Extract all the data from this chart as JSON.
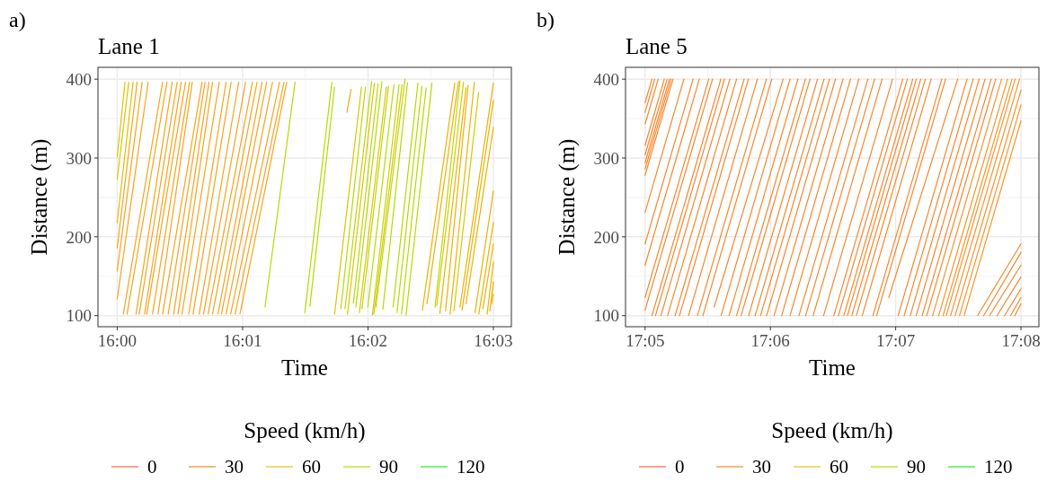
{
  "chart_data": [
    {
      "type": "line",
      "title": "Lane 1",
      "annotations": [
        "a)"
      ],
      "xlabel": "Time",
      "ylabel": "Distance (m)",
      "xlim": [
        15.99744,
        16.05239
      ],
      "ylim": [
        86,
        415
      ],
      "xticks": [
        {
          "value": 16,
          "label": "16:00"
        },
        {
          "value": 16.016667,
          "label": "16:01"
        },
        {
          "value": 16.033333,
          "label": "16:02"
        },
        {
          "value": 16.05,
          "label": "16:03"
        }
      ],
      "yticks": [
        100,
        200,
        300,
        400
      ],
      "grid": true,
      "legend": "bottom",
      "legend_title": "Speed (km/h)",
      "series": [
        {
          "name": "0",
          "color": "#f4845f"
        },
        {
          "name": "30",
          "color": "#f6a24a"
        },
        {
          "name": "60",
          "color": "#f5c842"
        },
        {
          "name": "90",
          "color": "#c5e23a"
        },
        {
          "name": "120",
          "color": "#4cf04c"
        },
        {
          "color": "#dcc400",
          "x": [
            16,
            16.00103
          ],
          "values": [
            301,
            396
          ]
        },
        {
          "color": "#dcc400",
          "x": [
            16,
            16.00153
          ],
          "values": [
            273,
            396
          ]
        },
        {
          "color": "#e2bc00",
          "x": [
            16,
            16.00211
          ],
          "values": [
            218,
            396
          ]
        },
        {
          "color": "#f9a31b",
          "x": [
            16,
            16.00264
          ],
          "values": [
            186,
            396
          ]
        },
        {
          "color": "#f9a31b",
          "x": [
            16,
            16.00331
          ],
          "values": [
            157,
            396
          ]
        },
        {
          "color": "#f9a31b",
          "x": [
            16,
            16.00411
          ],
          "values": [
            121,
            396
          ]
        },
        {
          "color": "#f9a31b",
          "x": [
            16.00081,
            16.00603
          ],
          "values": [
            102,
            396
          ]
        },
        {
          "color": "#f9a31b",
          "x": [
            16.00131,
            16.00661
          ],
          "values": [
            102,
            396
          ]
        },
        {
          "color": "#f9a31b",
          "x": [
            16.0025,
            16.00731
          ],
          "values": [
            102,
            396
          ]
        },
        {
          "color": "#f9a31b",
          "x": [
            16.00292,
            16.00797
          ],
          "values": [
            102,
            396
          ]
        },
        {
          "color": "#f9a31b",
          "x": [
            16.00364,
            16.0085
          ],
          "values": [
            102,
            396
          ]
        },
        {
          "color": "#f9a31b",
          "x": [
            16.00392,
            16.00908
          ],
          "values": [
            102,
            396
          ]
        },
        {
          "color": "#f9a31b",
          "x": [
            16.00469,
            16.00961
          ],
          "values": [
            102,
            396
          ]
        },
        {
          "color": "#f9a31b",
          "x": [
            16.00542,
            16.00997
          ],
          "values": [
            102,
            396
          ]
        },
        {
          "color": "#f9a31b",
          "x": [
            16.00603,
            16.01128
          ],
          "values": [
            102,
            396
          ]
        },
        {
          "color": "#f9a31b",
          "x": [
            16.00678,
            16.01167
          ],
          "values": [
            102,
            396
          ]
        },
        {
          "color": "#f9a31b",
          "x": [
            16.0075,
            16.01219
          ],
          "values": [
            102,
            396
          ]
        },
        {
          "color": "#f9a31b",
          "x": [
            16.00808,
            16.01267
          ],
          "values": [
            102,
            396
          ]
        },
        {
          "color": "#f9a31b",
          "x": [
            16.00861,
            16.01356
          ],
          "values": [
            102,
            396
          ]
        },
        {
          "color": "#f9a31b",
          "x": [
            16.0095,
            16.01447
          ],
          "values": [
            102,
            396
          ]
        },
        {
          "color": "#f9a31b",
          "x": [
            16.01008,
            16.01514
          ],
          "values": [
            102,
            396
          ]
        },
        {
          "color": "#f9a31b",
          "x": [
            16.01089,
            16.01614
          ],
          "values": [
            102,
            396
          ]
        },
        {
          "color": "#f9a31b",
          "x": [
            16.01147,
            16.01706
          ],
          "values": [
            102,
            396
          ]
        },
        {
          "color": "#f9a31b",
          "x": [
            16.01208,
            16.01797
          ],
          "values": [
            102,
            396
          ]
        },
        {
          "color": "#f9a31b",
          "x": [
            16.01267,
            16.01858
          ],
          "values": [
            102,
            396
          ]
        },
        {
          "color": "#f9a31b",
          "x": [
            16.01339,
            16.01925
          ],
          "values": [
            102,
            396
          ]
        },
        {
          "color": "#f9a31b",
          "x": [
            16.01386,
            16.01986
          ],
          "values": [
            102,
            396
          ]
        },
        {
          "color": "#f9a31b",
          "x": [
            16.01447,
            16.02064
          ],
          "values": [
            102,
            396
          ]
        },
        {
          "color": "#f9a31b",
          "x": [
            16.01508,
            16.02156
          ],
          "values": [
            102,
            396
          ]
        },
        {
          "color": "#f9a31b",
          "x": [
            16.01567,
            16.02217
          ],
          "values": [
            102,
            396
          ]
        },
        {
          "color": "#f9a31b",
          "x": [
            16.01631,
            16.02253
          ],
          "values": [
            102,
            396
          ]
        },
        {
          "color": "#b9d800",
          "x": [
            16.01964,
            16.02364
          ],
          "values": [
            111,
            396
          ]
        },
        {
          "color": "#b9d800",
          "x": [
            16.02494,
            16.02853
          ],
          "values": [
            104,
            396
          ]
        },
        {
          "color": "#b9d800",
          "x": [
            16.02561,
            16.02889
          ],
          "values": [
            112,
            390
          ]
        },
        {
          "color": "#f9a31b",
          "x": [
            16.03053,
            16.03108
          ],
          "values": [
            358,
            387
          ]
        },
        {
          "color": "#dcc400",
          "x": [
            16.02889,
            16.03247
          ],
          "values": [
            102,
            390
          ]
        },
        {
          "color": "#b9d800",
          "x": [
            16.02972,
            16.033
          ],
          "values": [
            109,
            390
          ]
        },
        {
          "color": "#b9d800",
          "x": [
            16.03028,
            16.03381
          ],
          "values": [
            109,
            397
          ]
        },
        {
          "color": "#dcc400",
          "x": [
            16.03061,
            16.03419
          ],
          "values": [
            102,
            395
          ]
        },
        {
          "color": "#b9d800",
          "x": [
            16.03139,
            16.03467
          ],
          "values": [
            116,
            394
          ]
        },
        {
          "color": "#b9d800",
          "x": [
            16.03172,
            16.03519
          ],
          "values": [
            111,
            397
          ]
        },
        {
          "color": "#dcc400",
          "x": [
            16.03219,
            16.03578
          ],
          "values": [
            104,
            390
          ]
        },
        {
          "color": "#b9d800",
          "x": [
            16.03253,
            16.03606
          ],
          "values": [
            109,
            391
          ]
        },
        {
          "color": "#b9d800",
          "x": [
            16.03331,
            16.03678
          ],
          "values": [
            111,
            393
          ]
        },
        {
          "color": "#b9d800",
          "x": [
            16.03392,
            16.03747
          ],
          "values": [
            101,
            393
          ]
        },
        {
          "color": "#dcc400",
          "x": [
            16.03411,
            16.03786
          ],
          "values": [
            102,
            393
          ]
        },
        {
          "color": "#b9d800",
          "x": [
            16.03439,
            16.03825
          ],
          "values": [
            111,
            400
          ]
        },
        {
          "color": "#b9d800",
          "x": [
            16.03531,
            16.03858
          ],
          "values": [
            108,
            395
          ]
        },
        {
          "color": "#b9d800",
          "x": [
            16.03667,
            16.03997
          ],
          "values": [
            111,
            395
          ]
        },
        {
          "color": "#b9d800",
          "x": [
            16.03719,
            16.0405
          ],
          "values": [
            104,
            391
          ]
        },
        {
          "color": "#b9d800",
          "x": [
            16.03778,
            16.04106
          ],
          "values": [
            102,
            389
          ]
        },
        {
          "color": "#b9d800",
          "x": [
            16.03839,
            16.04183
          ],
          "values": [
            101,
            395
          ]
        },
        {
          "color": "#f0b000",
          "x": [
            16.04056,
            16.04486
          ],
          "values": [
            107,
            395
          ]
        },
        {
          "color": "#f0b000",
          "x": [
            16.04117,
            16.04536
          ],
          "values": [
            115,
            397
          ]
        },
        {
          "color": "#c8d000",
          "x": [
            16.04225,
            16.04556
          ],
          "values": [
            111,
            398
          ]
        },
        {
          "color": "#c8d000",
          "x": [
            16.04247,
            16.04603
          ],
          "values": [
            113,
            396
          ]
        },
        {
          "color": "#f0b000",
          "x": [
            16.04289,
            16.04636
          ],
          "values": [
            103,
            389
          ]
        },
        {
          "color": "#f0b000",
          "x": [
            16.04364,
            16.04664
          ],
          "values": [
            106,
            392
          ]
        },
        {
          "color": "#f0b000",
          "x": [
            16.04425,
            16.04747
          ],
          "values": [
            102,
            396
          ]
        },
        {
          "color": "#c8d000",
          "x": [
            16.04475,
            16.04803
          ],
          "values": [
            106,
            383
          ]
        },
        {
          "color": "#f0b000",
          "x": [
            16.04556,
            16.05
          ],
          "values": [
            111,
            395
          ]
        },
        {
          "color": "#f0b000",
          "x": [
            16.04583,
            16.05
          ],
          "values": [
            107,
            373
          ]
        },
        {
          "color": "#f0b000",
          "x": [
            16.04636,
            16.05
          ],
          "values": [
            115,
            339
          ]
        },
        {
          "color": "#f0b000",
          "x": [
            16.04756,
            16.05
          ],
          "values": [
            104,
            258
          ]
        },
        {
          "color": "#f0b000",
          "x": [
            16.04806,
            16.05
          ],
          "values": [
            102,
            218
          ]
        },
        {
          "color": "#f0b000",
          "x": [
            16.04861,
            16.05
          ],
          "values": [
            109,
            191
          ]
        },
        {
          "color": "#f0b000",
          "x": [
            16.04917,
            16.05
          ],
          "values": [
            102,
            168
          ]
        },
        {
          "color": "#f0b000",
          "x": [
            16.04953,
            16.05
          ],
          "values": [
            106,
            143
          ]
        },
        {
          "color": "#f0b000",
          "x": [
            16.04975,
            16.05
          ],
          "values": [
            115,
            127
          ]
        }
      ]
    },
    {
      "type": "line",
      "title": "Lane 5",
      "annotations": [
        "b)"
      ],
      "xlabel": "Time",
      "ylabel": "Distance (m)",
      "xlim": [
        17.08073,
        17.13572
      ],
      "ylim": [
        86,
        415
      ],
      "xticks": [
        {
          "value": 17.083333,
          "label": "17:05"
        },
        {
          "value": 17.1,
          "label": "17:06"
        },
        {
          "value": 17.116667,
          "label": "17:07"
        },
        {
          "value": 17.133333,
          "label": "17:08"
        }
      ],
      "yticks": [
        100,
        200,
        300,
        400
      ],
      "grid": true,
      "legend": "bottom",
      "legend_title": "Speed (km/h)",
      "series": [
        {
          "name": "0",
          "color": "#f4845f"
        },
        {
          "name": "30",
          "color": "#f6a24a"
        },
        {
          "name": "60",
          "color": "#f5c842"
        },
        {
          "name": "90",
          "color": "#c5e23a"
        },
        {
          "name": "120",
          "color": "#4cf04c"
        },
        {
          "color": "#f8862c",
          "x": [
            17.08333,
            17.08425
          ],
          "values": [
            370,
            400
          ]
        },
        {
          "color": "#f8862c",
          "x": [
            17.08333,
            17.08461
          ],
          "values": [
            358,
            400
          ]
        },
        {
          "color": "#f8862c",
          "x": [
            17.08333,
            17.08508
          ],
          "values": [
            343,
            400
          ]
        },
        {
          "color": "#f8862c",
          "x": [
            17.08333,
            17.08589
          ],
          "values": [
            316,
            400
          ]
        },
        {
          "color": "#f8862c",
          "x": [
            17.08333,
            17.08627
          ],
          "values": [
            304,
            400
          ]
        },
        {
          "color": "#f8862c",
          "x": [
            17.08333,
            17.08658
          ],
          "values": [
            294,
            400
          ]
        },
        {
          "color": "#f8862c",
          "x": [
            17.08333,
            17.0868
          ],
          "values": [
            286,
            400
          ]
        },
        {
          "color": "#f8862c",
          "x": [
            17.08333,
            17.08705
          ],
          "values": [
            278,
            400
          ]
        },
        {
          "color": "#f8862c",
          "x": [
            17.08333,
            17.0885
          ],
          "values": [
            231,
            400
          ]
        },
        {
          "color": "#f8862c",
          "x": [
            17.08333,
            17.08972
          ],
          "values": [
            191,
            400
          ]
        },
        {
          "color": "#f8862c",
          "x": [
            17.08333,
            17.09055
          ],
          "values": [
            164,
            400
          ]
        },
        {
          "color": "#f8862c",
          "x": [
            17.08333,
            17.0918
          ],
          "values": [
            123,
            400
          ]
        },
        {
          "color": "#f8862c",
          "x": [
            17.08333,
            17.0923
          ],
          "values": [
            107,
            400
          ]
        },
        {
          "color": "#f8862c",
          "x": [
            17.08425,
            17.09341
          ],
          "values": [
            100,
            400
          ]
        },
        {
          "color": "#f8862c",
          "x": [
            17.08472,
            17.09389
          ],
          "values": [
            100,
            400
          ]
        },
        {
          "color": "#f8862c",
          "x": [
            17.08544,
            17.09461
          ],
          "values": [
            100,
            400
          ]
        },
        {
          "color": "#f8862c",
          "x": [
            17.08633,
            17.0955
          ],
          "values": [
            100,
            400
          ]
        },
        {
          "color": "#f8862c",
          "x": [
            17.08733,
            17.0965
          ],
          "values": [
            100,
            400
          ]
        },
        {
          "color": "#f8862c",
          "x": [
            17.08791,
            17.09708
          ],
          "values": [
            100,
            400
          ]
        },
        {
          "color": "#f8862c",
          "x": [
            17.08911,
            17.09827
          ],
          "values": [
            100,
            400
          ]
        },
        {
          "color": "#f8862c",
          "x": [
            17.0903,
            17.09947
          ],
          "values": [
            100,
            400
          ]
        },
        {
          "color": "#f8862c",
          "x": [
            17.09102,
            17.10019
          ],
          "values": [
            100,
            400
          ]
        },
        {
          "color": "#f8862c",
          "x": [
            17.09252,
            17.10169
          ],
          "values": [
            111,
            400
          ]
        },
        {
          "color": "#f8862c",
          "x": [
            17.09344,
            17.10261
          ],
          "values": [
            100,
            400
          ]
        },
        {
          "color": "#f8862c",
          "x": [
            17.0945,
            17.10366
          ],
          "values": [
            100,
            400
          ]
        },
        {
          "color": "#f8862c",
          "x": [
            17.0955,
            17.10466
          ],
          "values": [
            100,
            400
          ]
        },
        {
          "color": "#f8862c",
          "x": [
            17.09611,
            17.10527
          ],
          "values": [
            100,
            400
          ]
        },
        {
          "color": "#f8862c",
          "x": [
            17.09711,
            17.10627
          ],
          "values": [
            100,
            400
          ]
        },
        {
          "color": "#f8862c",
          "x": [
            17.09797,
            17.10714
          ],
          "values": [
            100,
            400
          ]
        },
        {
          "color": "#f8862c",
          "x": [
            17.09869,
            17.10786
          ],
          "values": [
            100,
            400
          ]
        },
        {
          "color": "#f8862c",
          "x": [
            17.0995,
            17.10866
          ],
          "values": [
            100,
            400
          ]
        },
        {
          "color": "#f8862c",
          "x": [
            17.1005,
            17.10966
          ],
          "values": [
            100,
            400
          ]
        },
        {
          "color": "#f8862c",
          "x": [
            17.1015,
            17.11066
          ],
          "values": [
            100,
            400
          ]
        },
        {
          "color": "#f8862c",
          "x": [
            17.10261,
            17.11177
          ],
          "values": [
            100,
            400
          ]
        },
        {
          "color": "#f8862c",
          "x": [
            17.1038,
            17.11297
          ],
          "values": [
            100,
            400
          ]
        },
        {
          "color": "#f8862c",
          "x": [
            17.10469,
            17.11386
          ],
          "values": [
            100,
            400
          ]
        },
        {
          "color": "#f8862c",
          "x": [
            17.10569,
            17.11486
          ],
          "values": [
            100,
            400
          ]
        },
        {
          "color": "#f8862c",
          "x": [
            17.10708,
            17.11625
          ],
          "values": [
            100,
            400
          ]
        },
        {
          "color": "#f8862c",
          "x": [
            17.10844,
            17.11761
          ],
          "values": [
            100,
            400
          ]
        },
        {
          "color": "#f8862c",
          "x": [
            17.10905,
            17.11822
          ],
          "values": [
            100,
            400
          ]
        },
        {
          "color": "#f8862c",
          "x": [
            17.10977,
            17.11894
          ],
          "values": [
            100,
            400
          ]
        },
        {
          "color": "#f8862c",
          "x": [
            17.11025,
            17.11941
          ],
          "values": [
            100,
            400
          ]
        },
        {
          "color": "#f8862c",
          "x": [
            17.11083,
            17.12
          ],
          "values": [
            100,
            400
          ]
        },
        {
          "color": "#f8862c",
          "x": [
            17.11144,
            17.12061
          ],
          "values": [
            100,
            400
          ]
        },
        {
          "color": "#f8862c",
          "x": [
            17.11222,
            17.12139
          ],
          "values": [
            100,
            400
          ]
        },
        {
          "color": "#f8862c",
          "x": [
            17.11364,
            17.1228
          ],
          "values": [
            100,
            400
          ]
        },
        {
          "color": "#f8862c",
          "x": [
            17.11414,
            17.1233
          ],
          "values": [
            100,
            400
          ]
        },
        {
          "color": "#f8862c",
          "x": [
            17.11575,
            17.12491
          ],
          "values": [
            123,
            400
          ]
        },
        {
          "color": "#f8862c",
          "x": [
            17.117,
            17.12616
          ],
          "values": [
            100,
            400
          ]
        },
        {
          "color": "#f8862c",
          "x": [
            17.1178,
            17.12697
          ],
          "values": [
            100,
            400
          ]
        },
        {
          "color": "#f8862c",
          "x": [
            17.11861,
            17.12777
          ],
          "values": [
            100,
            400
          ]
        },
        {
          "color": "#f8862c",
          "x": [
            17.11939,
            17.12855
          ],
          "values": [
            100,
            400
          ]
        },
        {
          "color": "#f8862c",
          "x": [
            17.12019,
            17.12936
          ],
          "values": [
            100,
            400
          ]
        },
        {
          "color": "#f8862c",
          "x": [
            17.1208,
            17.12997
          ],
          "values": [
            100,
            400
          ]
        },
        {
          "color": "#f8942a",
          "x": [
            17.12158,
            17.13075
          ],
          "values": [
            100,
            400
          ]
        },
        {
          "color": "#f8942a",
          "x": [
            17.12239,
            17.13155
          ],
          "values": [
            100,
            400
          ]
        },
        {
          "color": "#f8942a",
          "x": [
            17.12297,
            17.13214
          ],
          "values": [
            100,
            400
          ]
        },
        {
          "color": "#f8942a",
          "x": [
            17.12339,
            17.13255
          ],
          "values": [
            100,
            400
          ]
        },
        {
          "color": "#f8942a",
          "x": [
            17.12397,
            17.13314
          ],
          "values": [
            100,
            400
          ]
        },
        {
          "color": "#f8942a",
          "x": [
            17.12458,
            17.13333
          ],
          "values": [
            100,
            386
          ]
        },
        {
          "color": "#f8942a",
          "x": [
            17.12516,
            17.13333
          ],
          "values": [
            100,
            367
          ]
        },
        {
          "color": "#f8942a",
          "x": [
            17.12577,
            17.13333
          ],
          "values": [
            100,
            347
          ]
        },
        {
          "color": "#f8862c",
          "x": [
            17.12755,
            17.13333
          ],
          "values": [
            100,
            191
          ]
        },
        {
          "color": "#f8862c",
          "x": [
            17.12836,
            17.13333
          ],
          "values": [
            100,
            180
          ]
        },
        {
          "color": "#f8862c",
          "x": [
            17.12914,
            17.13333
          ],
          "values": [
            100,
            164
          ]
        },
        {
          "color": "#f8862c",
          "x": [
            17.13014,
            17.13333
          ],
          "values": [
            100,
            149
          ]
        },
        {
          "color": "#f8862c",
          "x": [
            17.13114,
            17.13333
          ],
          "values": [
            100,
            134
          ]
        },
        {
          "color": "#f8862c",
          "x": [
            17.13194,
            17.13333
          ],
          "values": [
            100,
            123
          ]
        },
        {
          "color": "#f8862c",
          "x": [
            17.13252,
            17.13333
          ],
          "values": [
            100,
            115
          ]
        }
      ]
    }
  ]
}
